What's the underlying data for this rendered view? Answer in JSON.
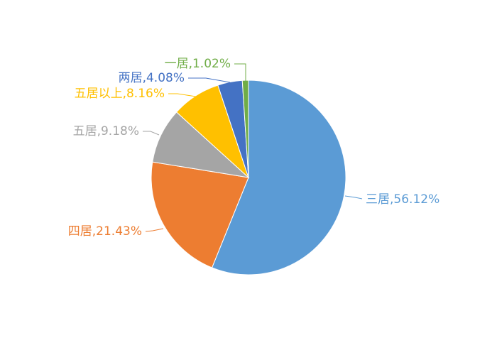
{
  "chart_data": {
    "type": "pie",
    "values": [
      56.12,
      21.43,
      9.18,
      8.16,
      4.08,
      1.02
    ],
    "value_labels": [
      "三居,56.12%",
      "四居,21.43%",
      "五居,9.18%",
      "五居以上,8.16%",
      "两居,4.08%",
      "一居,1.02%"
    ],
    "colors": [
      "#5b9bd5",
      "#ed7d31",
      "#a5a5a5",
      "#ffc000",
      "#4472c4",
      "#70ad47"
    ]
  }
}
